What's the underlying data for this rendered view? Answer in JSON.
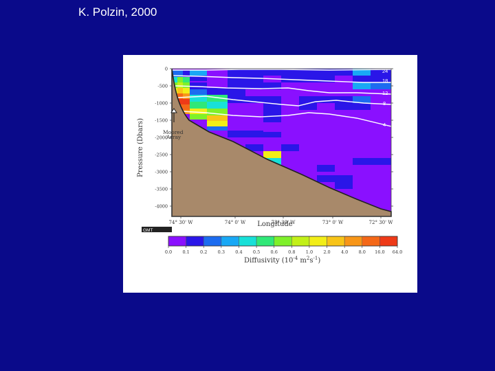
{
  "slide": {
    "title": "K. Polzin, 2000",
    "background_color": "#0a0a8a"
  },
  "chart_data": {
    "type": "heatmap",
    "title": "",
    "xlabel": "Longitude",
    "ylabel": "Pressure (Dbars)",
    "x_ticks": [
      "74° 30' W",
      "74° 0' W",
      "73° 30' W",
      "73° 0' W",
      "72° 30' W"
    ],
    "y_ticks": [
      "0",
      "-500",
      "-1000",
      "-1500",
      "-2000",
      "-2500",
      "-3000",
      "-3500",
      "-4000"
    ],
    "ylim": [
      -4300,
      0
    ],
    "x_order": "west_to_east",
    "annotation": {
      "text_line1": "Moored",
      "text_line2": "Array"
    },
    "contour_labels": [
      "24",
      "18",
      "12",
      "8",
      "4"
    ],
    "logo_text": "GMT",
    "bathymetry_color": "#a8896a",
    "colorbar": {
      "label_prefix": "Diffusivity (10",
      "label_exp1": "-4",
      "label_mid": " m",
      "label_exp2": "2",
      "label_unit": "s",
      "label_exp3": "-1",
      "label_suffix": ")",
      "tick_labels": [
        "0.0",
        "0.1",
        "0.2",
        "0.3",
        "0.4",
        "0.5",
        "0.6",
        "0.8",
        "1.0",
        "2.0",
        "4.0",
        "8.0",
        "16.0",
        "64.0"
      ],
      "colors": [
        "#8a10ff",
        "#2a16e8",
        "#1c6cf0",
        "#19a8f5",
        "#18e0d8",
        "#30e878",
        "#7ff02a",
        "#c2f018",
        "#f2ee18",
        "#f8c418",
        "#f89618",
        "#f46818",
        "#ee3a18"
      ]
    }
  }
}
